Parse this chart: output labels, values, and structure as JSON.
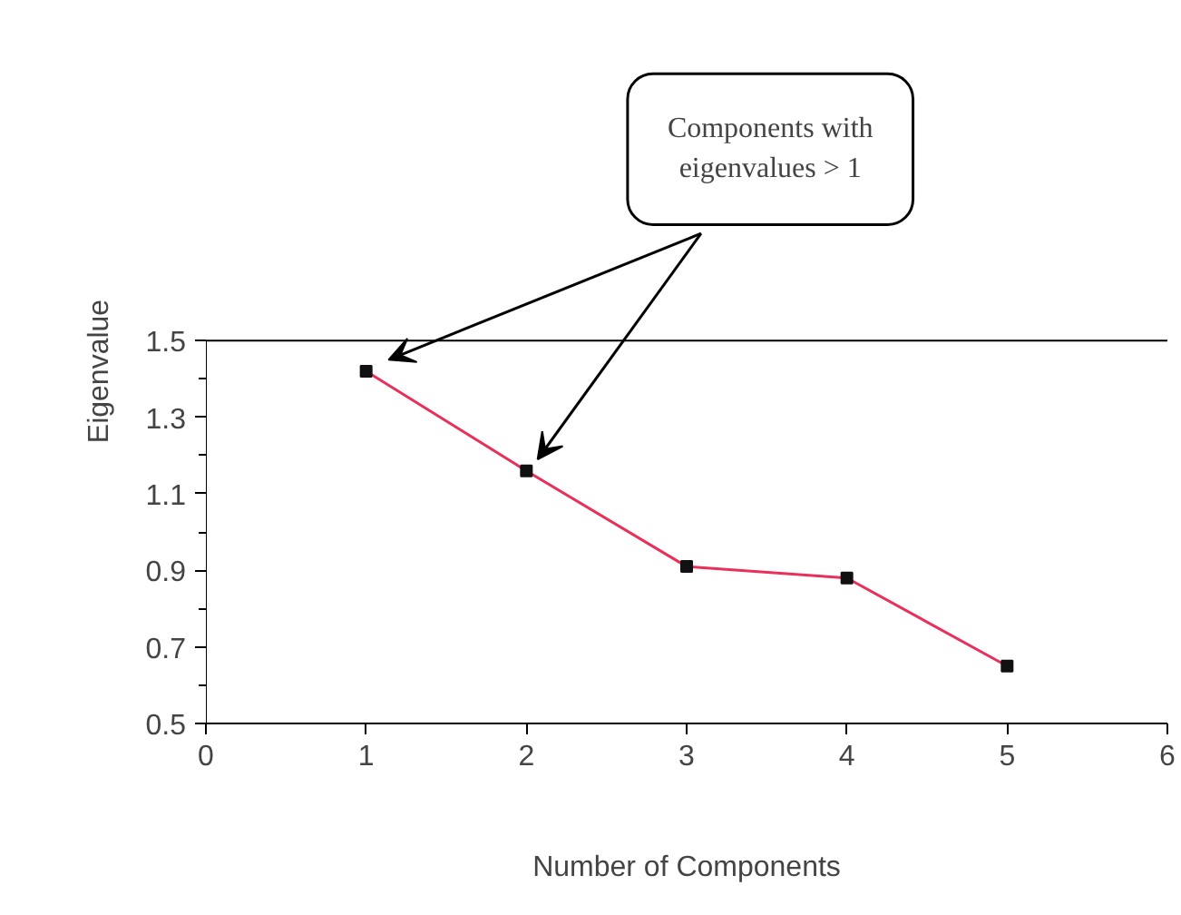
{
  "chart_data": {
    "type": "line",
    "xlabel": "Number of Components",
    "ylabel": "Eigenvalue",
    "x": [
      1,
      2,
      3,
      4,
      5
    ],
    "series": [
      {
        "color": "#e8305a",
        "values": [
          1.42,
          1.16,
          0.91,
          0.88,
          0.65
        ]
      }
    ],
    "xlim": [
      0,
      6
    ],
    "xticks": [
      0,
      1,
      2,
      3,
      4,
      5,
      6
    ],
    "ylim": [
      0.5,
      1.5
    ],
    "yticks": [
      0.5,
      0.7,
      0.9,
      1.1,
      1.3,
      1.5
    ],
    "marker": "square",
    "grid": false,
    "annotations": [
      "Components with\neigenvalues > 1"
    ]
  }
}
